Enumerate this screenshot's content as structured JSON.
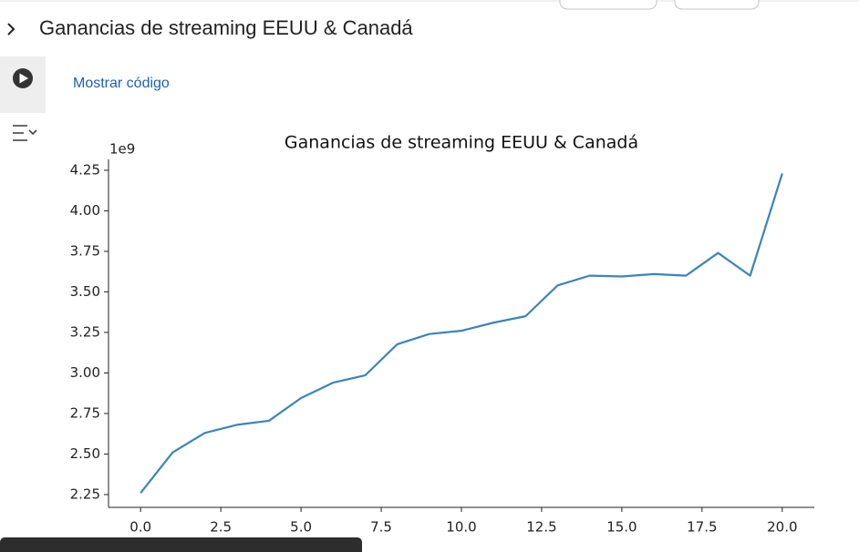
{
  "section_title": "Ganancias de streaming EEUU & Canadá",
  "show_code_link": "Mostrar código",
  "chart_data": {
    "type": "line",
    "title": "Ganancias de streaming EEUU & Canadá",
    "offset_label": "1e9",
    "x": [
      0,
      1,
      2,
      3,
      4,
      5,
      6,
      7,
      8,
      9,
      10,
      11,
      12,
      13,
      14,
      15,
      16,
      17,
      18,
      19,
      20
    ],
    "series": [
      {
        "name": null,
        "color": "#3a84bd",
        "values": [
          2260000000,
          2510000000,
          2630000000,
          2680000000,
          2705000000,
          2845000000,
          2940000000,
          2985000000,
          3177000000,
          3240000000,
          3260000000,
          3310000000,
          3350000000,
          3540000000,
          3600000000,
          3595000000,
          3610000000,
          3600000000,
          3740000000,
          3600000000,
          4230000000
        ]
      }
    ],
    "xlim": [
      -1.0,
      21.0
    ],
    "xticks": [
      {
        "value": 0,
        "label": "0.0"
      },
      {
        "value": 2.5,
        "label": "2.5"
      },
      {
        "value": 5,
        "label": "5.0"
      },
      {
        "value": 7.5,
        "label": "7.5"
      },
      {
        "value": 10,
        "label": "10.0"
      },
      {
        "value": 12.5,
        "label": "12.5"
      },
      {
        "value": 15,
        "label": "15.0"
      },
      {
        "value": 17.5,
        "label": "17.5"
      },
      {
        "value": 20,
        "label": "20.0"
      }
    ],
    "ylim": [
      2171000000,
      4317000000
    ],
    "yticks": [
      {
        "value": 2250000000,
        "label": "2.25"
      },
      {
        "value": 2500000000,
        "label": "2.50"
      },
      {
        "value": 2750000000,
        "label": "2.75"
      },
      {
        "value": 3000000000,
        "label": "3.00"
      },
      {
        "value": 3250000000,
        "label": "3.25"
      },
      {
        "value": 3500000000,
        "label": "3.50"
      },
      {
        "value": 3750000000,
        "label": "3.75"
      },
      {
        "value": 4000000000,
        "label": "4.00"
      },
      {
        "value": 4250000000,
        "label": "4.25"
      }
    ],
    "grid": false
  }
}
